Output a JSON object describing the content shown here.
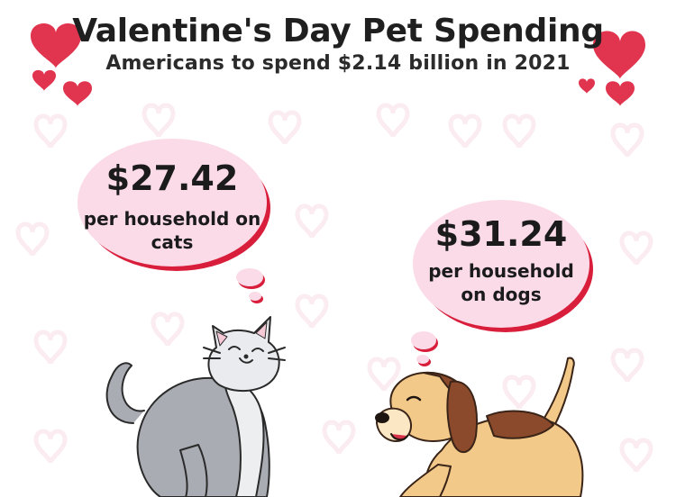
{
  "header": {
    "title": "Valentine's Day Pet Spending",
    "subtitle": "Americans to spend $2.14 billion in 2021"
  },
  "cats": {
    "amount": "$27.42",
    "caption_line1": "per household on",
    "caption_line2": "cats"
  },
  "dogs": {
    "amount": "$31.24",
    "caption_line1": "per household",
    "caption_line2": "on dogs"
  },
  "colors": {
    "accent_red": "#d81e3b",
    "bubble_pink": "#fbdbe8",
    "cat_gray": "#a9adb3",
    "dog_tan": "#f3c98a",
    "dog_brown": "#8b4a2b"
  },
  "icons": [
    "heart-icon",
    "cat-illustration",
    "dog-illustration"
  ]
}
